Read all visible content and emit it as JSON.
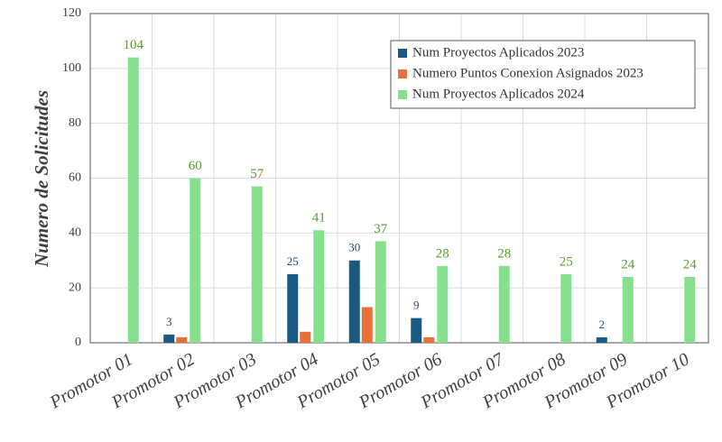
{
  "chart_data": {
    "type": "bar",
    "y_label": "Numero de Solicitudes",
    "categories": [
      "Promotor 01",
      "Promotor 02",
      "Promotor 03",
      "Promotor 04",
      "Promotor 05",
      "Promotor 06",
      "Promotor 07",
      "Promotor 08",
      "Promotor 09",
      "Promotor 10"
    ],
    "series": [
      {
        "name": "Num Proyectos Aplicados 2023",
        "color": "#1b5a80",
        "label_color": "#1b4f78",
        "data_labels": true,
        "values": [
          null,
          3,
          null,
          25,
          30,
          9,
          null,
          null,
          2,
          null
        ]
      },
      {
        "name": "Numero Puntos Conexion Asignados 2023",
        "color": "#e8703a",
        "data_labels": false,
        "values": [
          null,
          2,
          null,
          4,
          13,
          2,
          null,
          null,
          null,
          null
        ]
      },
      {
        "name": "Num Proyectos Aplicados 2024",
        "color": "#86e08e",
        "label_color": "#5a9a2a",
        "data_labels": true,
        "values": [
          104,
          60,
          57,
          41,
          37,
          28,
          28,
          25,
          24,
          24
        ]
      }
    ],
    "ylim": [
      0,
      120
    ],
    "yticks": [
      0,
      20,
      40,
      60,
      80,
      100,
      120
    ],
    "grid": true,
    "legend": "top-right"
  }
}
